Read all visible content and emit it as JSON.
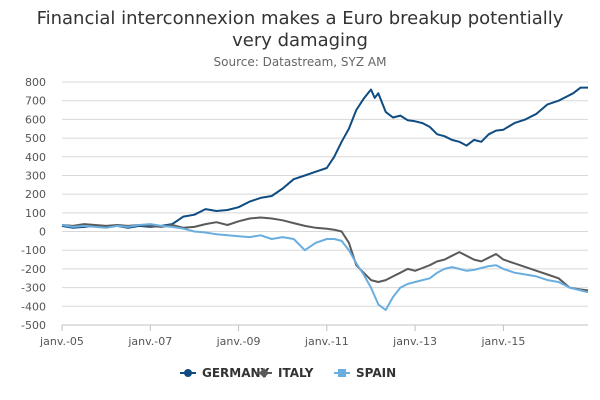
{
  "chart_data": {
    "type": "line",
    "title_lines": [
      "Financial interconnexion makes a Euro breakup potentially",
      "very damaging"
    ],
    "subtitle": "Source: Datastream, SYZ AM",
    "xlabel": "",
    "ylabel": "",
    "ylim": [
      -500,
      800
    ],
    "y_ticks": [
      800,
      700,
      600,
      500,
      400,
      300,
      200,
      100,
      0,
      -100,
      -200,
      -300,
      -400,
      -500
    ],
    "x_range": [
      "2005-01",
      "2016-12"
    ],
    "x_ticks": [
      {
        "date": "2005-01",
        "label": "janv.-05"
      },
      {
        "date": "2007-01",
        "label": "janv.-07"
      },
      {
        "date": "2009-01",
        "label": "janv.-09"
      },
      {
        "date": "2011-01",
        "label": "janv.-11"
      },
      {
        "date": "2013-01",
        "label": "janv.-13"
      },
      {
        "date": "2015-01",
        "label": "janv.-15"
      }
    ],
    "grid": true,
    "legend_position": "bottom",
    "series": [
      {
        "name": "GERMANY",
        "color": "#0f4c81",
        "marker": "circle",
        "points": [
          [
            "2005-01",
            30
          ],
          [
            "2005-04",
            20
          ],
          [
            "2005-07",
            25
          ],
          [
            "2005-10",
            30
          ],
          [
            "2006-01",
            25
          ],
          [
            "2006-04",
            30
          ],
          [
            "2006-07",
            20
          ],
          [
            "2006-10",
            30
          ],
          [
            "2007-01",
            25
          ],
          [
            "2007-04",
            30
          ],
          [
            "2007-07",
            40
          ],
          [
            "2007-10",
            80
          ],
          [
            "2008-01",
            90
          ],
          [
            "2008-04",
            120
          ],
          [
            "2008-07",
            110
          ],
          [
            "2008-10",
            115
          ],
          [
            "2009-01",
            130
          ],
          [
            "2009-04",
            160
          ],
          [
            "2009-07",
            180
          ],
          [
            "2009-10",
            190
          ],
          [
            "2010-01",
            230
          ],
          [
            "2010-04",
            280
          ],
          [
            "2010-07",
            300
          ],
          [
            "2010-10",
            320
          ],
          [
            "2011-01",
            340
          ],
          [
            "2011-03",
            400
          ],
          [
            "2011-05",
            480
          ],
          [
            "2011-07",
            550
          ],
          [
            "2011-09",
            650
          ],
          [
            "2011-11",
            710
          ],
          [
            "2012-01",
            760
          ],
          [
            "2012-02",
            715
          ],
          [
            "2012-03",
            740
          ],
          [
            "2012-05",
            640
          ],
          [
            "2012-07",
            610
          ],
          [
            "2012-09",
            620
          ],
          [
            "2012-11",
            595
          ],
          [
            "2013-01",
            590
          ],
          [
            "2013-03",
            580
          ],
          [
            "2013-05",
            560
          ],
          [
            "2013-07",
            520
          ],
          [
            "2013-09",
            510
          ],
          [
            "2013-11",
            490
          ],
          [
            "2014-01",
            480
          ],
          [
            "2014-03",
            460
          ],
          [
            "2014-05",
            490
          ],
          [
            "2014-07",
            480
          ],
          [
            "2014-09",
            520
          ],
          [
            "2014-11",
            540
          ],
          [
            "2015-01",
            545
          ],
          [
            "2015-04",
            580
          ],
          [
            "2015-07",
            600
          ],
          [
            "2015-10",
            630
          ],
          [
            "2016-01",
            680
          ],
          [
            "2016-04",
            700
          ],
          [
            "2016-06",
            720
          ],
          [
            "2016-08",
            740
          ],
          [
            "2016-10",
            770
          ],
          [
            "2016-12",
            770
          ]
        ]
      },
      {
        "name": "ITALY",
        "color": "#5a5a5a",
        "marker": "diamond",
        "points": [
          [
            "2005-01",
            35
          ],
          [
            "2005-04",
            30
          ],
          [
            "2005-07",
            40
          ],
          [
            "2005-10",
            35
          ],
          [
            "2006-01",
            30
          ],
          [
            "2006-04",
            35
          ],
          [
            "2006-07",
            30
          ],
          [
            "2006-10",
            35
          ],
          [
            "2007-01",
            30
          ],
          [
            "2007-04",
            25
          ],
          [
            "2007-07",
            35
          ],
          [
            "2007-10",
            20
          ],
          [
            "2008-01",
            25
          ],
          [
            "2008-04",
            40
          ],
          [
            "2008-07",
            50
          ],
          [
            "2008-10",
            35
          ],
          [
            "2009-01",
            55
          ],
          [
            "2009-04",
            70
          ],
          [
            "2009-07",
            75
          ],
          [
            "2009-10",
            70
          ],
          [
            "2010-01",
            60
          ],
          [
            "2010-04",
            45
          ],
          [
            "2010-07",
            30
          ],
          [
            "2010-10",
            20
          ],
          [
            "2011-01",
            15
          ],
          [
            "2011-03",
            10
          ],
          [
            "2011-05",
            0
          ],
          [
            "2011-07",
            -60
          ],
          [
            "2011-09",
            -180
          ],
          [
            "2011-11",
            -220
          ],
          [
            "2012-01",
            -260
          ],
          [
            "2012-03",
            -270
          ],
          [
            "2012-05",
            -260
          ],
          [
            "2012-07",
            -240
          ],
          [
            "2012-09",
            -220
          ],
          [
            "2012-11",
            -200
          ],
          [
            "2013-01",
            -210
          ],
          [
            "2013-03",
            -195
          ],
          [
            "2013-05",
            -180
          ],
          [
            "2013-07",
            -160
          ],
          [
            "2013-09",
            -150
          ],
          [
            "2013-11",
            -130
          ],
          [
            "2014-01",
            -110
          ],
          [
            "2014-03",
            -130
          ],
          [
            "2014-05",
            -150
          ],
          [
            "2014-07",
            -160
          ],
          [
            "2014-09",
            -140
          ],
          [
            "2014-11",
            -120
          ],
          [
            "2015-01",
            -150
          ],
          [
            "2015-04",
            -170
          ],
          [
            "2015-07",
            -190
          ],
          [
            "2015-10",
            -210
          ],
          [
            "2016-01",
            -230
          ],
          [
            "2016-04",
            -250
          ],
          [
            "2016-07",
            -300
          ],
          [
            "2016-10",
            -310
          ],
          [
            "2016-12",
            -315
          ]
        ]
      },
      {
        "name": "SPAIN",
        "color": "#6aaee0",
        "marker": "square",
        "points": [
          [
            "2005-01",
            35
          ],
          [
            "2005-04",
            25
          ],
          [
            "2005-07",
            30
          ],
          [
            "2005-10",
            25
          ],
          [
            "2006-01",
            20
          ],
          [
            "2006-04",
            30
          ],
          [
            "2006-07",
            25
          ],
          [
            "2006-10",
            35
          ],
          [
            "2007-01",
            40
          ],
          [
            "2007-04",
            30
          ],
          [
            "2007-07",
            25
          ],
          [
            "2007-10",
            15
          ],
          [
            "2008-01",
            0
          ],
          [
            "2008-04",
            -5
          ],
          [
            "2008-07",
            -15
          ],
          [
            "2008-10",
            -20
          ],
          [
            "2009-01",
            -25
          ],
          [
            "2009-04",
            -30
          ],
          [
            "2009-07",
            -20
          ],
          [
            "2009-10",
            -40
          ],
          [
            "2010-01",
            -30
          ],
          [
            "2010-04",
            -40
          ],
          [
            "2010-07",
            -100
          ],
          [
            "2010-10",
            -60
          ],
          [
            "2011-01",
            -40
          ],
          [
            "2011-03",
            -40
          ],
          [
            "2011-05",
            -50
          ],
          [
            "2011-07",
            -100
          ],
          [
            "2011-09",
            -170
          ],
          [
            "2011-11",
            -230
          ],
          [
            "2012-01",
            -300
          ],
          [
            "2012-03",
            -390
          ],
          [
            "2012-05",
            -420
          ],
          [
            "2012-07",
            -350
          ],
          [
            "2012-09",
            -300
          ],
          [
            "2012-11",
            -280
          ],
          [
            "2013-01",
            -270
          ],
          [
            "2013-03",
            -260
          ],
          [
            "2013-05",
            -250
          ],
          [
            "2013-07",
            -220
          ],
          [
            "2013-09",
            -200
          ],
          [
            "2013-11",
            -190
          ],
          [
            "2014-01",
            -200
          ],
          [
            "2014-03",
            -210
          ],
          [
            "2014-05",
            -205
          ],
          [
            "2014-07",
            -195
          ],
          [
            "2014-09",
            -185
          ],
          [
            "2014-11",
            -180
          ],
          [
            "2015-01",
            -200
          ],
          [
            "2015-04",
            -220
          ],
          [
            "2015-07",
            -230
          ],
          [
            "2015-10",
            -240
          ],
          [
            "2016-01",
            -260
          ],
          [
            "2016-04",
            -270
          ],
          [
            "2016-07",
            -300
          ],
          [
            "2016-10",
            -315
          ],
          [
            "2016-12",
            -325
          ]
        ]
      }
    ]
  }
}
